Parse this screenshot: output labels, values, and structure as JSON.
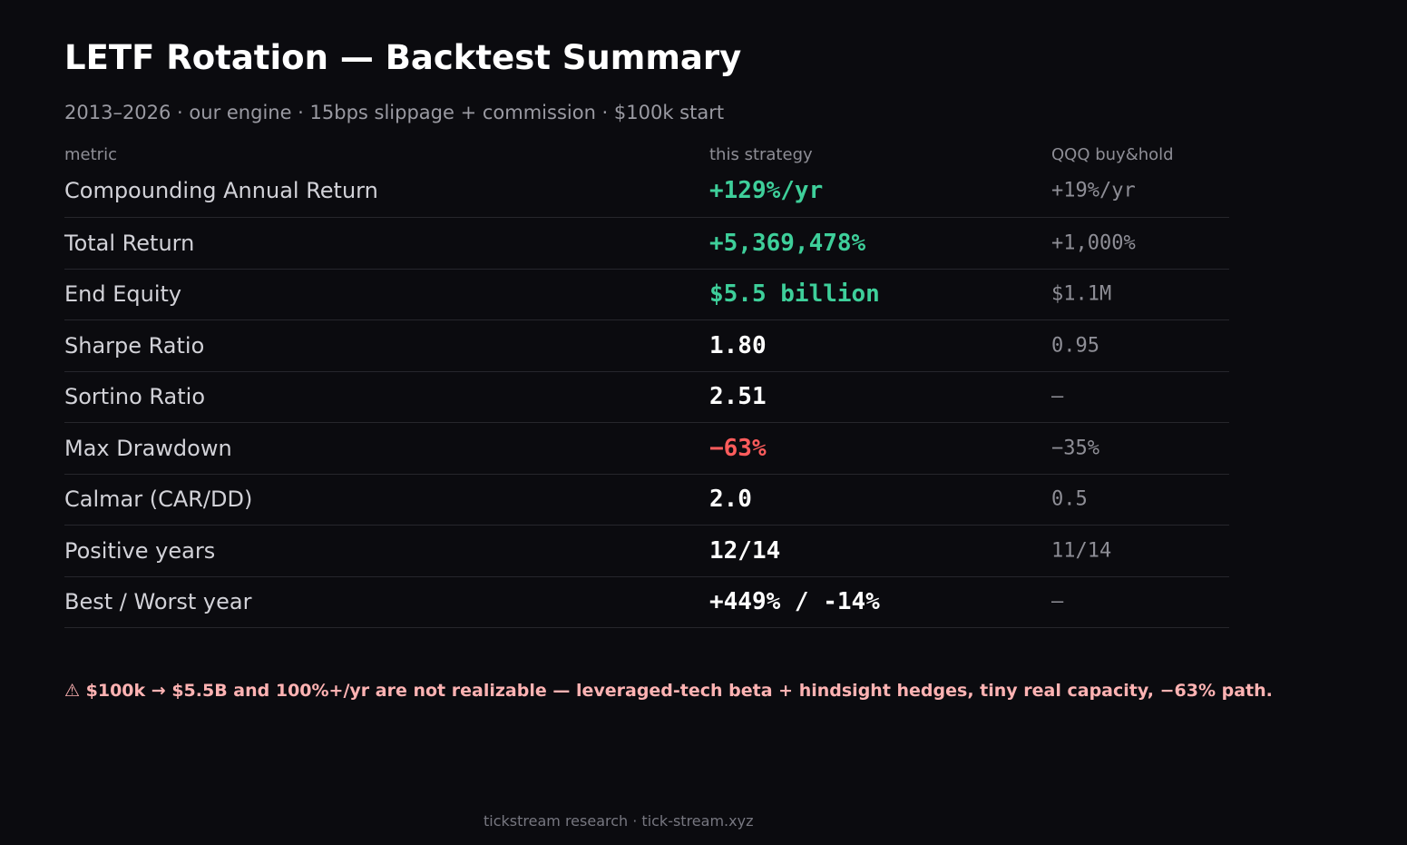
{
  "header": {
    "title": "LETF Rotation — Backtest Summary",
    "subtitle": "2013–2026 · our engine · 15bps slippage + commission · $100k start"
  },
  "colors": {
    "positive": "#3ecf9a",
    "negative": "#ff5c5c",
    "neutral": "#ffffff"
  },
  "table": {
    "columns": [
      "metric",
      "this strategy",
      "QQQ buy&hold"
    ],
    "rows": [
      {
        "metric": "Compounding Annual Return",
        "strategy": "+129%/yr",
        "qqq": "+19%/yr",
        "tone": "positive"
      },
      {
        "metric": "Total Return",
        "strategy": "+5,369,478%",
        "qqq": "+1,000%",
        "tone": "positive"
      },
      {
        "metric": "End Equity",
        "strategy": "$5.5 billion",
        "qqq": "$1.1M",
        "tone": "positive"
      },
      {
        "metric": "Sharpe Ratio",
        "strategy": "1.80",
        "qqq": "0.95",
        "tone": "neutral"
      },
      {
        "metric": "Sortino Ratio",
        "strategy": "2.51",
        "qqq": "—",
        "tone": "neutral"
      },
      {
        "metric": "Max Drawdown",
        "strategy": "−63%",
        "qqq": "−35%",
        "tone": "negative"
      },
      {
        "metric": "Calmar (CAR/DD)",
        "strategy": "2.0",
        "qqq": "0.5",
        "tone": "neutral"
      },
      {
        "metric": "Positive years",
        "strategy": "12/14",
        "qqq": "11/14",
        "tone": "neutral"
      },
      {
        "metric": "Best / Worst year",
        "strategy": "+449% / -14%",
        "qqq": "—",
        "tone": "neutral"
      }
    ]
  },
  "warning": "⚠ $100k → $5.5B and 100%+/yr are not realizable — leveraged-tech beta + hindsight hedges, tiny real capacity, −63% path.",
  "footer": "tickstream research · tick-stream.xyz"
}
